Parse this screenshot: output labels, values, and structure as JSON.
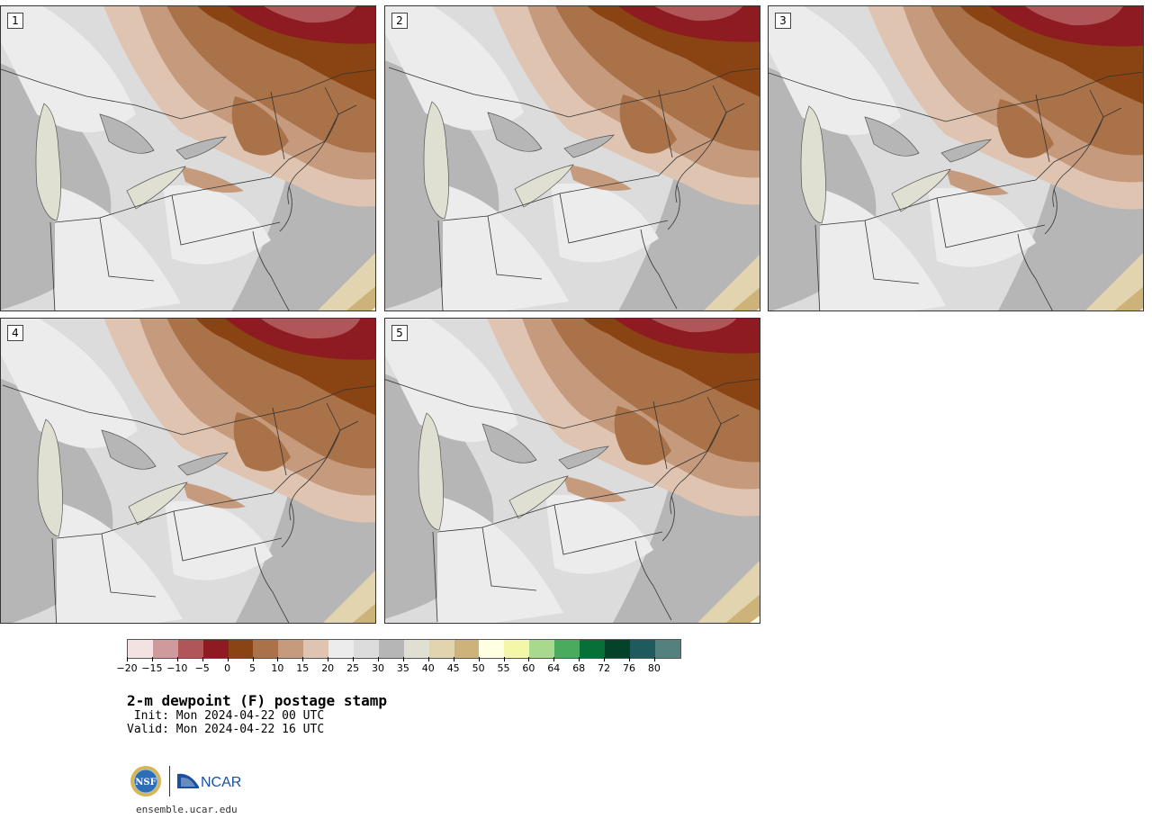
{
  "panels": [
    {
      "label": "1"
    },
    {
      "label": "2"
    },
    {
      "label": "3"
    },
    {
      "label": "4"
    },
    {
      "label": "5"
    }
  ],
  "colorbar": {
    "colors": [
      "#f2e2e2",
      "#d09a9c",
      "#b05558",
      "#8e1a22",
      "#8a4312",
      "#aa7248",
      "#c69a7c",
      "#dfc4b2",
      "#ececec",
      "#dcdcdc",
      "#b6b6b6",
      "#e0e0d2",
      "#e2d4ae",
      "#cdb37a",
      "#ffffe2",
      "#f5f7a8",
      "#a9d98c",
      "#4aaa5e",
      "#067038",
      "#04432a",
      "#1e5a5e",
      "#52817e"
    ],
    "ticks": [
      "−20",
      "−15",
      "−10",
      "−5",
      "0",
      "5",
      "10",
      "15",
      "20",
      "25",
      "30",
      "35",
      "40",
      "45",
      "50",
      "55",
      "60",
      "64",
      "68",
      "72",
      "76",
      "80"
    ]
  },
  "title": "2-m dewpoint (F) postage stamp",
  "init": " Init: Mon 2024-04-22 00 UTC",
  "valid": "Valid: Mon 2024-04-22 16 UTC",
  "logos": {
    "nsf": "NSF",
    "ncar": "NCAR"
  },
  "url": "ensemble.ucar.edu"
}
